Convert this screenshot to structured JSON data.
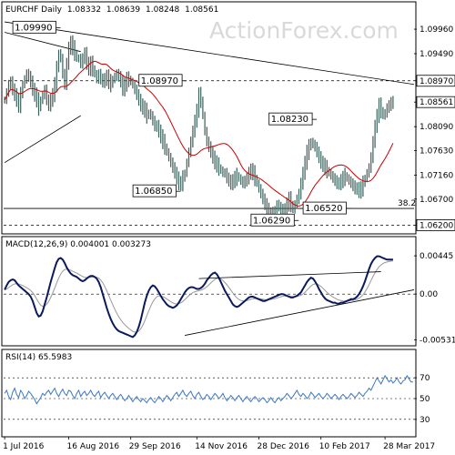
{
  "chart_data": [
    {
      "panel": "price",
      "type": "bar",
      "title": "EURCHF Daily",
      "header_values": [
        "1.08332",
        "1.08639",
        "1.08248",
        "1.08561"
      ],
      "watermark": "ActionForex.com",
      "ylim": [
        1.0605,
        1.1045
      ],
      "y_ticks": [
        {
          "label": "1.09960",
          "value": 1.0996
        },
        {
          "label": "1.09490",
          "value": 1.0949
        },
        {
          "label": "1.08970",
          "value": 1.0897
        },
        {
          "label": "1.08561",
          "value": 1.08561
        },
        {
          "label": "1.08090",
          "value": 1.0809
        },
        {
          "label": "1.07630",
          "value": 1.0763
        },
        {
          "label": "1.07160",
          "value": 1.0716
        },
        {
          "label": "1.06700",
          "value": 1.067
        },
        {
          "label": "1.06200",
          "value": 1.062
        }
      ],
      "x_ticks": [
        {
          "label": "1 Jul 2016",
          "index": 0
        },
        {
          "label": "16 Aug 2016",
          "index": 32
        },
        {
          "label": "29 Sep 2016",
          "index": 63
        },
        {
          "label": "14 Nov 2016",
          "index": 96
        },
        {
          "label": "28 Dec 2016",
          "index": 127
        },
        {
          "label": "10 Feb 2017",
          "index": 158
        },
        {
          "label": "28 Mar 2017",
          "index": 190
        }
      ],
      "bar_count": 205,
      "closes": [
        1.086,
        1.0875,
        1.089,
        1.0895,
        1.088,
        1.087,
        1.086,
        1.085,
        1.087,
        1.089,
        1.09,
        1.091,
        1.0905,
        1.0895,
        1.088,
        1.087,
        1.086,
        1.0845,
        1.086,
        1.087,
        1.088,
        1.086,
        1.085,
        1.086,
        1.087,
        1.089,
        1.092,
        1.095,
        1.094,
        1.091,
        1.089,
        1.093,
        1.096,
        1.097,
        1.096,
        1.095,
        1.094,
        1.094,
        1.093,
        1.094,
        1.095,
        1.093,
        1.092,
        1.093,
        1.092,
        1.091,
        1.09,
        1.091,
        1.09,
        1.0895,
        1.09,
        1.0905,
        1.0895,
        1.089,
        1.09,
        1.0905,
        1.091,
        1.0905,
        1.0895,
        1.088,
        1.089,
        1.09,
        1.09,
        1.0895,
        1.089,
        1.088,
        1.087,
        1.086,
        1.085,
        1.0845,
        1.084,
        1.083,
        1.0835,
        1.083,
        1.082,
        1.081,
        1.081,
        1.08,
        1.079,
        1.078,
        1.077,
        1.076,
        1.075,
        1.074,
        1.073,
        1.072,
        1.071,
        1.07,
        1.07,
        1.071,
        1.072,
        1.074,
        1.076,
        1.078,
        1.08,
        1.082,
        1.084,
        1.087,
        1.086,
        1.083,
        1.08,
        1.078,
        1.077,
        1.076,
        1.075,
        1.074,
        1.0735,
        1.073,
        1.0725,
        1.072,
        1.072,
        1.071,
        1.0705,
        1.07,
        1.0705,
        1.071,
        1.0715,
        1.071,
        1.0705,
        1.07,
        1.0705,
        1.071,
        1.072,
        1.0725,
        1.072,
        1.071,
        1.07,
        1.069,
        1.068,
        1.067,
        1.066,
        1.065,
        1.064,
        1.0635,
        1.064,
        1.065,
        1.066,
        1.0655,
        1.065,
        1.0645,
        1.065,
        1.066,
        1.067,
        1.066,
        1.065,
        1.066,
        1.067,
        1.068,
        1.07,
        1.072,
        1.074,
        1.076,
        1.077,
        1.078,
        1.0775,
        1.077,
        1.076,
        1.075,
        1.074,
        1.0735,
        1.073,
        1.0725,
        1.072,
        1.0715,
        1.071,
        1.0705,
        1.07,
        1.07,
        1.0705,
        1.071,
        1.0715,
        1.071,
        1.0705,
        1.07,
        1.0695,
        1.069,
        1.069,
        1.0685,
        1.069,
        1.07,
        1.071,
        1.072,
        1.073,
        1.075,
        1.078,
        1.081,
        1.083,
        1.085,
        1.084,
        1.083,
        1.0835,
        1.0845,
        1.085,
        1.0855,
        1.0856
      ],
      "sma_line_color": "#cc0000",
      "bar_color": "#3b5f5a",
      "labels": [
        {
          "text": "1.09990",
          "index": 27,
          "value": 1.0999,
          "anchor": "left"
        },
        {
          "text": "1.08970",
          "index": 90,
          "value": 1.0897,
          "anchor": "left"
        },
        {
          "text": "1.08230",
          "index": 155,
          "value": 1.0823,
          "anchor": "left"
        },
        {
          "text": "1.06850",
          "index": 87,
          "value": 1.0685,
          "anchor": "left"
        },
        {
          "text": "1.06520",
          "index": 172,
          "value": 1.0652,
          "anchor": "left"
        },
        {
          "text": "1.06290",
          "index": 146,
          "value": 1.0629,
          "anchor": "left"
        }
      ],
      "fib_label": "38.2",
      "fib_value": 1.0652,
      "dashed_levels": [
        1.0897,
        1.062
      ]
    },
    {
      "panel": "macd",
      "type": "line",
      "title": "MACD(12,26,9) 0.004001 0.003273",
      "y_ticks": [
        {
          "label": "0.00445",
          "value": 0.00445
        },
        {
          "label": "0.00",
          "value": 0.0
        },
        {
          "label": "-0.00531",
          "value": -0.00531
        }
      ],
      "ylim": [
        -0.0058,
        0.0052
      ],
      "macd": [
        0.0005,
        0.001,
        0.0014,
        0.0016,
        0.0017,
        0.0016,
        0.0013,
        0.001,
        0.0008,
        0.0006,
        0.0004,
        0.0002,
        0.0,
        -0.0003,
        -0.0008,
        -0.0015,
        -0.0022,
        -0.0026,
        -0.0025,
        -0.002,
        -0.0012,
        -0.0004,
        0.0005,
        0.0014,
        0.0022,
        0.003,
        0.0037,
        0.0041,
        0.0042,
        0.004,
        0.0036,
        0.0031,
        0.0027,
        0.0024,
        0.0022,
        0.0021,
        0.002,
        0.0018,
        0.0016,
        0.0015,
        0.0016,
        0.0018,
        0.002,
        0.0021,
        0.0021,
        0.002,
        0.0018,
        0.0014,
        0.0008,
        0.0,
        -0.0008,
        -0.0016,
        -0.0023,
        -0.0029,
        -0.0034,
        -0.0038,
        -0.0041,
        -0.0043,
        -0.0044,
        -0.0045,
        -0.0046,
        -0.0047,
        -0.0048,
        -0.0049,
        -0.005,
        -0.0048,
        -0.0044,
        -0.0038,
        -0.003,
        -0.002,
        -0.001,
        -0.0002,
        0.0004,
        0.0008,
        0.001,
        0.0009,
        0.0006,
        0.0002,
        -0.0002,
        -0.0006,
        -0.0009,
        -0.0012,
        -0.0014,
        -0.0015,
        -0.0016,
        -0.0015,
        -0.0013,
        -0.001,
        -0.0006,
        -0.0002,
        0.0002,
        0.0005,
        0.0007,
        0.0008,
        0.0008,
        0.0007,
        0.0006,
        0.0006,
        0.0007,
        0.0009,
        0.0012,
        0.0016,
        0.0019,
        0.0022,
        0.0024,
        0.0025,
        0.0023,
        0.0019,
        0.0014,
        0.0009,
        0.0004,
        0.0,
        -0.0004,
        -0.0008,
        -0.0012,
        -0.0014,
        -0.0015,
        -0.0014,
        -0.0012,
        -0.001,
        -0.0008,
        -0.0006,
        -0.0004,
        -0.0003,
        -0.0003,
        -0.0004,
        -0.0005,
        -0.0006,
        -0.0007,
        -0.0008,
        -0.0008,
        -0.0007,
        -0.0006,
        -0.0005,
        -0.0004,
        -0.0003,
        -0.0002,
        -0.0001,
        0.0,
        0.0,
        -0.0001,
        -0.0002,
        -0.0003,
        -0.0004,
        -0.0004,
        -0.0003,
        -0.0002,
        0.0,
        0.0002,
        0.0006,
        0.001,
        0.0014,
        0.0017,
        0.0019,
        0.0018,
        0.0015,
        0.0011,
        0.0006,
        0.0002,
        -0.0002,
        -0.0005,
        -0.0007,
        -0.0008,
        -0.0009,
        -0.001,
        -0.001,
        -0.0011,
        -0.0011,
        -0.001,
        -0.001,
        -0.0009,
        -0.0008,
        -0.0007,
        -0.0006,
        -0.0006,
        -0.0005,
        -0.0003,
        0.0,
        0.0004,
        0.0009,
        0.0015,
        0.0022,
        0.0029,
        0.0035,
        0.0039,
        0.0042,
        0.0044,
        0.0044,
        0.0043,
        0.0042,
        0.0041,
        0.004,
        0.004,
        0.004,
        0.004
      ],
      "line_color": "#0a1a5c",
      "signal_color": "#999999"
    },
    {
      "panel": "rsi",
      "type": "line",
      "title": "RSI(14) 65.5983",
      "y_ticks": [
        {
          "label": "70",
          "value": 70
        },
        {
          "label": "50",
          "value": 50
        },
        {
          "label": "30",
          "value": 30
        }
      ],
      "ylim": [
        15,
        85
      ],
      "rsi_approx": [
        55,
        58,
        52,
        49,
        56,
        60,
        54,
        51,
        58,
        55,
        50,
        53,
        57,
        55,
        52,
        49,
        45,
        48,
        51,
        55,
        53,
        56,
        58,
        54,
        57,
        60,
        55,
        52,
        56,
        59,
        55,
        53,
        58,
        57,
        53,
        50,
        55,
        58,
        52,
        55,
        57,
        53,
        55,
        58,
        54,
        52,
        55,
        57,
        51,
        54,
        56,
        53,
        50,
        53,
        55,
        52,
        49,
        52,
        54,
        51,
        48,
        50,
        53,
        50,
        47,
        50,
        52,
        49,
        47,
        50,
        48,
        46,
        49,
        51,
        48,
        46,
        49,
        52,
        50,
        47,
        50,
        53,
        51,
        48,
        51,
        54,
        56,
        52,
        55,
        58,
        54,
        52,
        55,
        57,
        53,
        50,
        54,
        56,
        52,
        49,
        51,
        54,
        52,
        49,
        52,
        55,
        53,
        50,
        52,
        55,
        51,
        48,
        50,
        53,
        51,
        48,
        51,
        53,
        50,
        47,
        50,
        52,
        49,
        47,
        50,
        52,
        50,
        47,
        49,
        51,
        49,
        46,
        48,
        51,
        48,
        46,
        49,
        51,
        48,
        50,
        52,
        55,
        53,
        50,
        52,
        55,
        58,
        54,
        52,
        55,
        53,
        50,
        52,
        56,
        54,
        51,
        53,
        55,
        52,
        50,
        52,
        55,
        53,
        50,
        52,
        54,
        52,
        49,
        52,
        54,
        52,
        50,
        52,
        55,
        53,
        51,
        53,
        56,
        54,
        52,
        55,
        57,
        60,
        58,
        62,
        66,
        70,
        67,
        64,
        68,
        72,
        69,
        66,
        68,
        65,
        67,
        70,
        66,
        64,
        67,
        68,
        72,
        69,
        66,
        66
      ],
      "line_color": "#3b78c2"
    }
  ],
  "watermark": "ActionForex.com"
}
